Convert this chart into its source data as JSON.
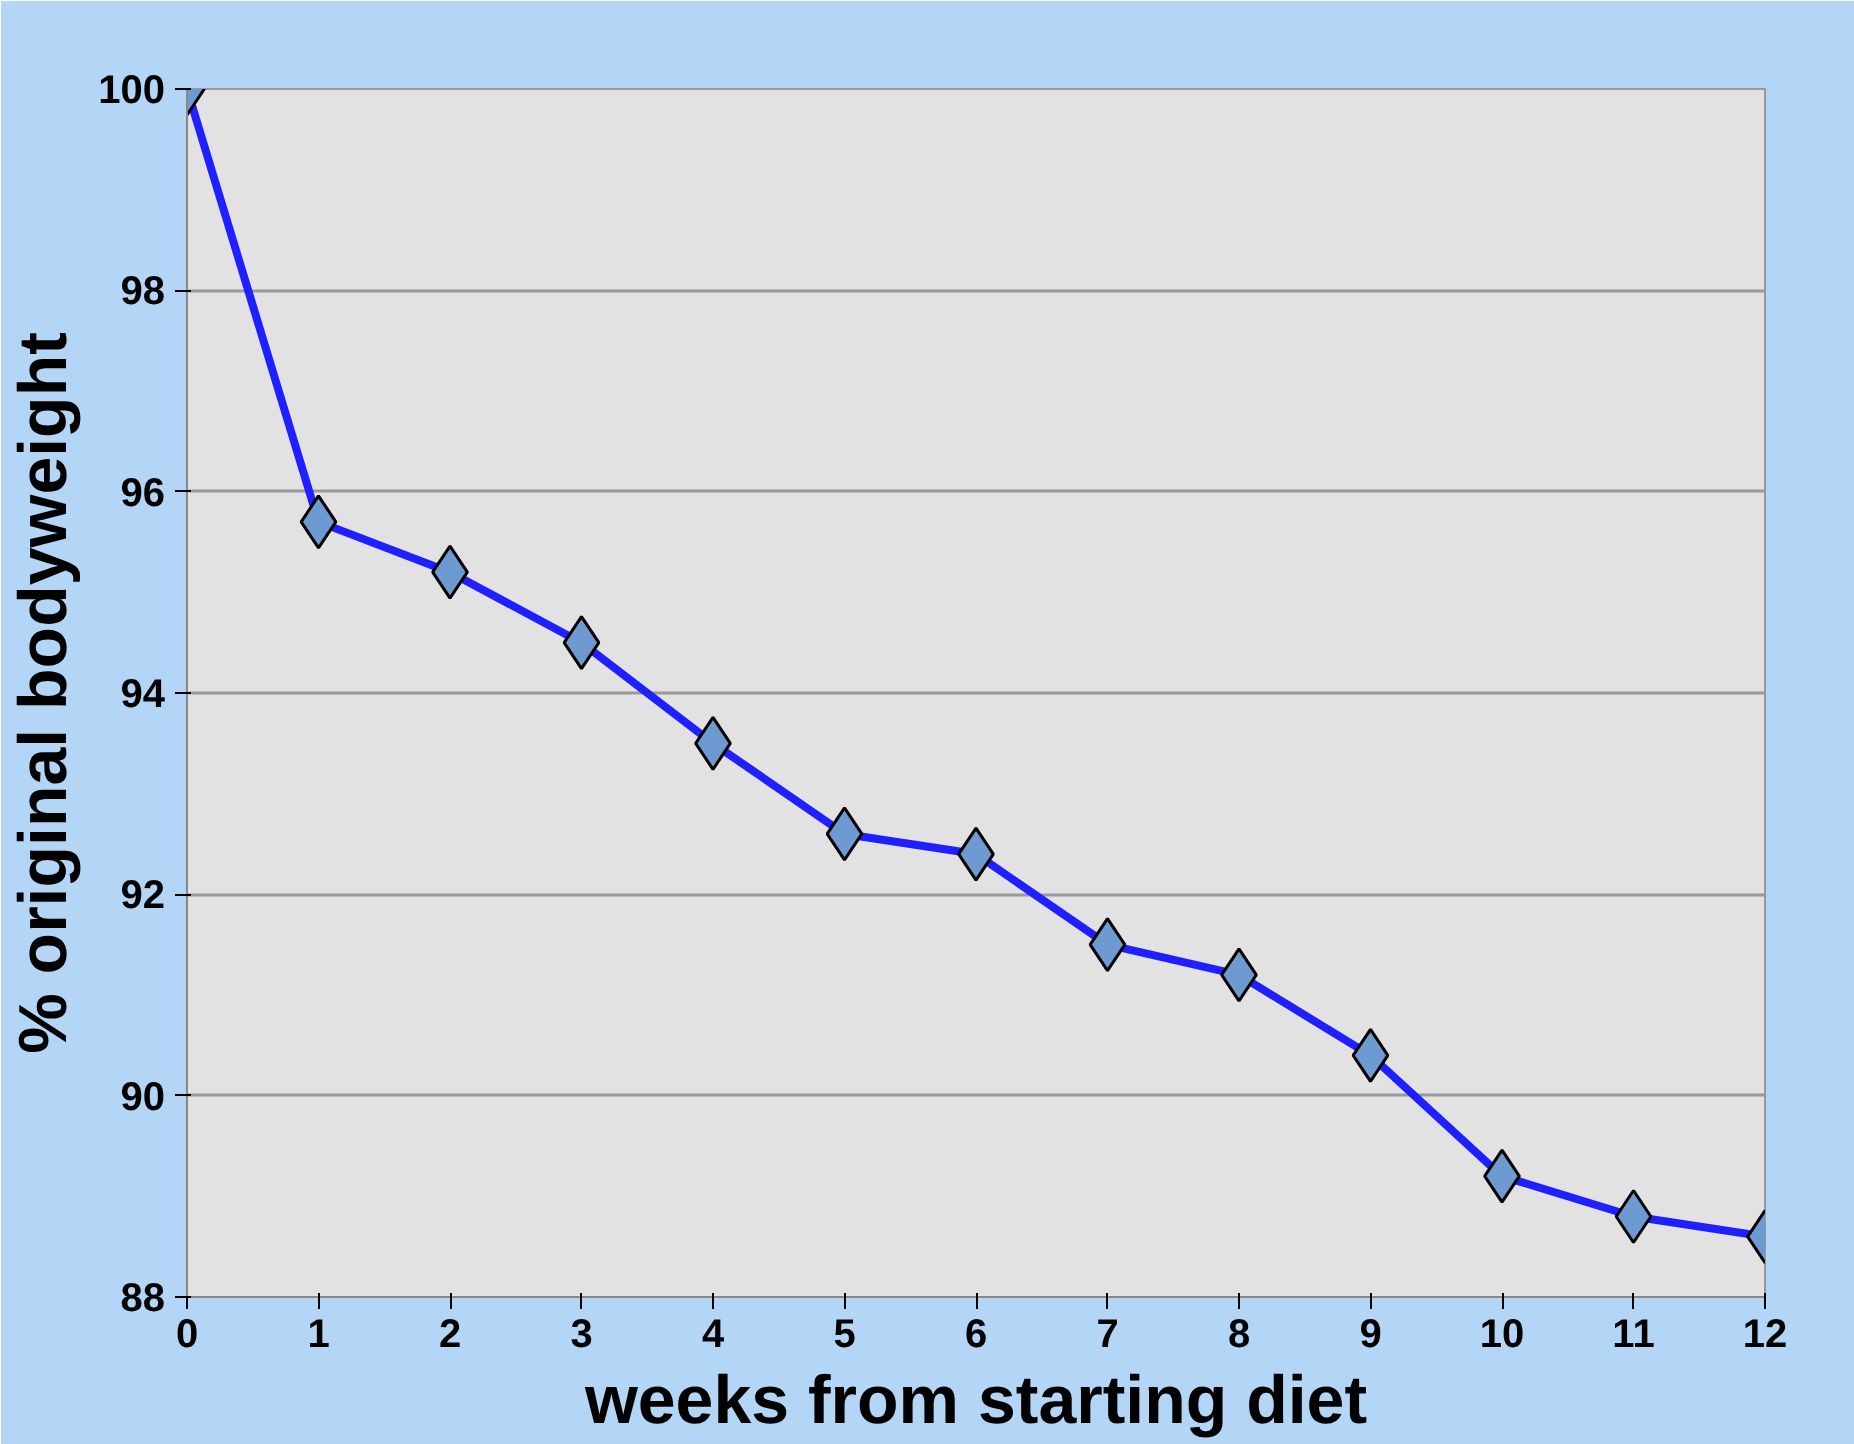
{
  "chart_data": {
    "type": "line",
    "xlabel": "weeks from starting diet",
    "ylabel": "% original bodyweight",
    "x": [
      0,
      1,
      2,
      3,
      4,
      5,
      6,
      7,
      8,
      9,
      10,
      11,
      12
    ],
    "series": [
      {
        "color": "#1f1fff",
        "values": [
          100,
          95.7,
          95.2,
          94.5,
          93.5,
          92.6,
          92.4,
          91.5,
          91.2,
          90.4,
          89.2,
          88.8,
          88.6
        ]
      }
    ],
    "xlim": [
      0,
      12
    ],
    "ylim": [
      88,
      100
    ],
    "xticks": [
      0,
      1,
      2,
      3,
      4,
      5,
      6,
      7,
      8,
      9,
      10,
      11,
      12
    ],
    "yticks": [
      88,
      90,
      92,
      94,
      96,
      98,
      100
    ],
    "grid": "y",
    "marker": "diamond",
    "line_style": "solid"
  }
}
